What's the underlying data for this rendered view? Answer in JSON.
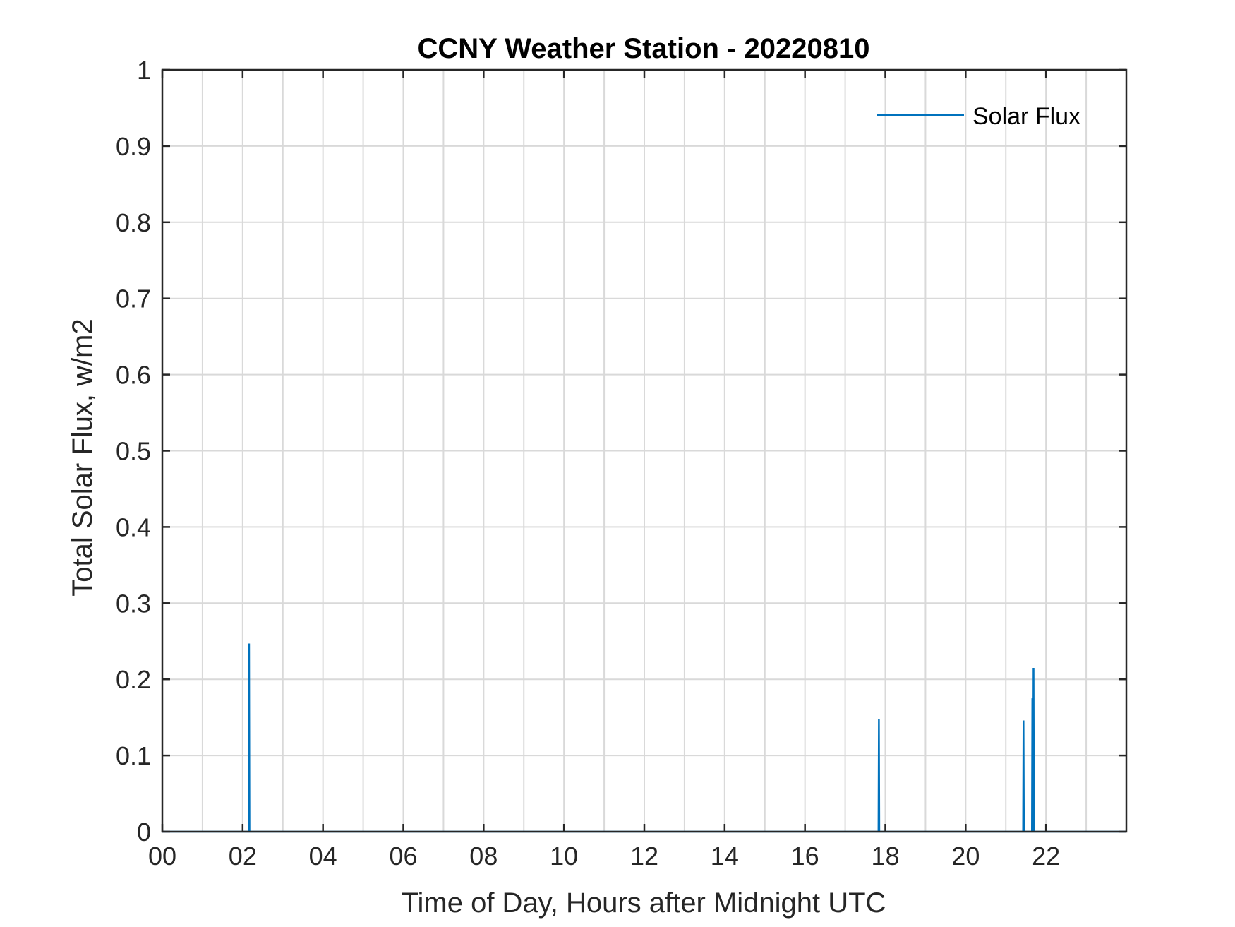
{
  "chart_data": {
    "type": "line",
    "title": "CCNY Weather Station - 20220810",
    "xlabel": "Time of Day, Hours after Midnight UTC",
    "ylabel": "Total Solar Flux, w/m2",
    "xlim": [
      0,
      24
    ],
    "ylim": [
      0,
      1
    ],
    "x_tick_values": [
      0,
      2,
      4,
      6,
      8,
      10,
      12,
      14,
      16,
      18,
      20,
      22
    ],
    "x_tick_labels": [
      "00",
      "02",
      "04",
      "06",
      "08",
      "10",
      "12",
      "14",
      "16",
      "18",
      "20",
      "22"
    ],
    "y_tick_values": [
      0,
      0.1,
      0.2,
      0.3,
      0.4,
      0.5,
      0.6,
      0.7,
      0.8,
      0.9,
      1
    ],
    "y_tick_labels": [
      "0",
      "0.1",
      "0.2",
      "0.3",
      "0.4",
      "0.5",
      "0.6",
      "0.7",
      "0.8",
      "0.9",
      "1"
    ],
    "grid": true,
    "grid_x_step_hours": 1,
    "legend_position": "top-right",
    "series": [
      {
        "name": "Solar Flux",
        "color": "#0072BD",
        "points": [
          [
            0,
            0
          ],
          [
            2.15,
            0
          ],
          [
            2.16,
            0.247
          ],
          [
            2.17,
            0
          ],
          [
            17.83,
            0
          ],
          [
            17.84,
            0.148
          ],
          [
            17.85,
            0
          ],
          [
            21.43,
            0
          ],
          [
            21.44,
            0.146
          ],
          [
            21.45,
            0
          ],
          [
            21.65,
            0
          ],
          [
            21.66,
            0.175
          ],
          [
            21.67,
            0
          ],
          [
            21.68,
            0
          ],
          [
            21.69,
            0.215
          ],
          [
            21.7,
            0
          ],
          [
            24,
            0
          ]
        ]
      }
    ]
  }
}
